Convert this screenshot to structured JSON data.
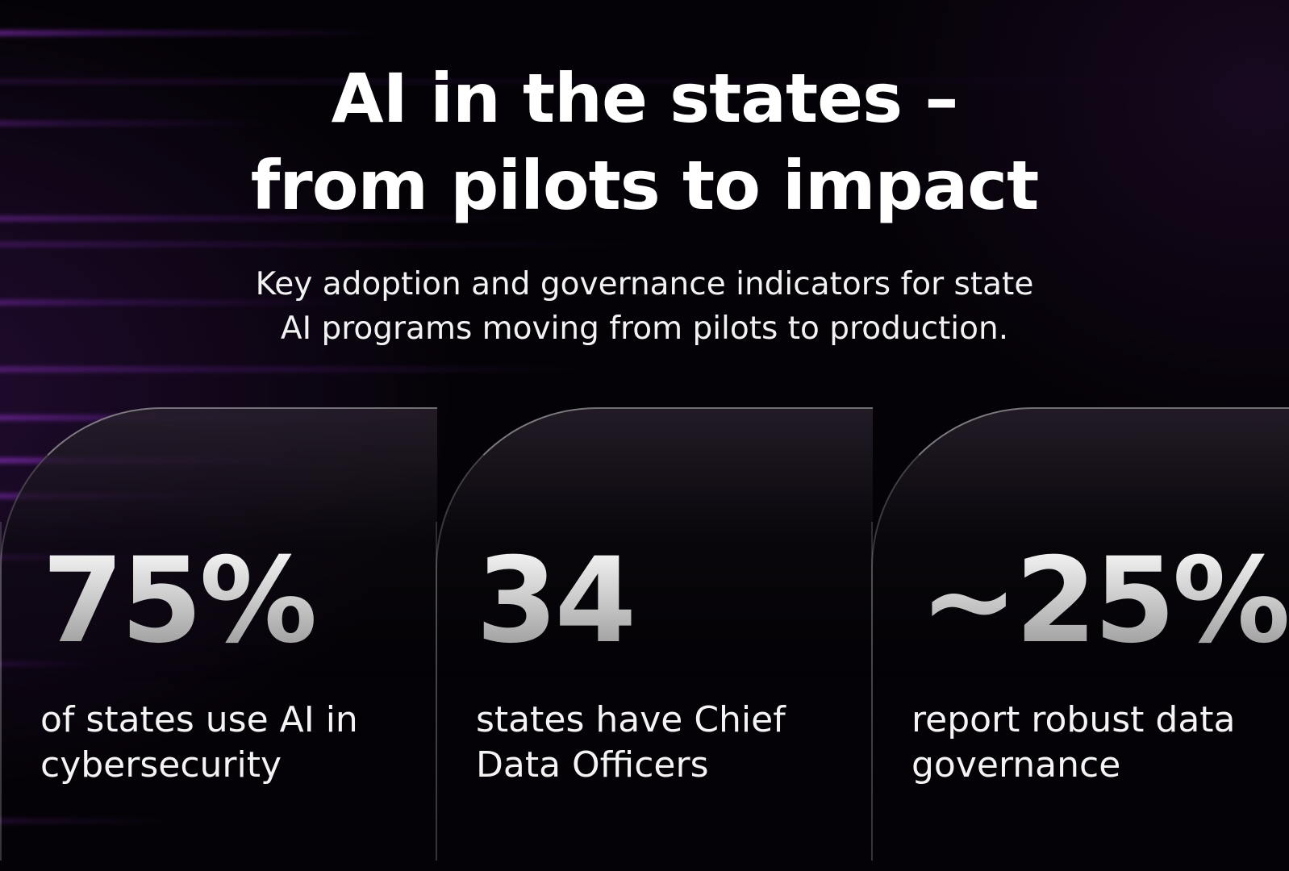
{
  "title": {
    "line1": "AI in the states –",
    "line2": "from pilots to impact"
  },
  "subtitle": {
    "line1": "Key adoption and governance indicators for state",
    "line2": "AI programs moving from pilots to production."
  },
  "stats": [
    {
      "value": "75%",
      "desc_line1": "of states use AI in",
      "desc_line2": "cybersecurity"
    },
    {
      "value": "34",
      "desc_line1": "states have Chief",
      "desc_line2": "Data Officers"
    },
    {
      "value": "~25%",
      "desc_line1": "report robust data",
      "desc_line2": "governance"
    }
  ],
  "colors": {
    "background": "#040206",
    "accent": "#aa3ce6",
    "text": "#ffffff"
  }
}
